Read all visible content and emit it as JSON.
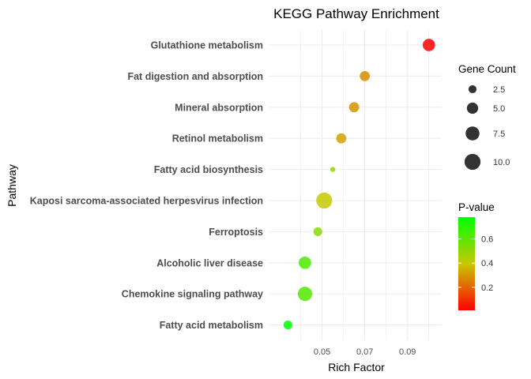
{
  "chart_data": {
    "type": "scatter",
    "title": "KEGG Pathway Enrichment",
    "xlabel": "Rich Factor",
    "ylabel": "Pathway",
    "xlim": [
      0.025,
      0.106
    ],
    "xticks": [
      {
        "value": 0.05,
        "label": "0.05"
      },
      {
        "value": 0.07,
        "label": "0.07"
      },
      {
        "value": 0.09,
        "label": "0.09"
      }
    ],
    "grid": true,
    "legend_position": "right",
    "categories": [
      "Glutathione metabolism",
      "Fat digestion and absorption",
      "Mineral absorption",
      "Retinol metabolism",
      "Fatty acid biosynthesis",
      "Kaposi sarcoma-associated herpesvirus infection",
      "Ferroptosis",
      "Alcoholic liver disease",
      "Chemokine signaling pathway",
      "Fatty acid metabolism"
    ],
    "points": [
      {
        "pathway": "Glutathione metabolism",
        "rich_factor": 0.1,
        "gene_count": 6,
        "p_value": 0.01
      },
      {
        "pathway": "Fat digestion and absorption",
        "rich_factor": 0.07,
        "gene_count": 4,
        "p_value": 0.28
      },
      {
        "pathway": "Mineral absorption",
        "rich_factor": 0.065,
        "gene_count": 4,
        "p_value": 0.29
      },
      {
        "pathway": "Retinol metabolism",
        "rich_factor": 0.059,
        "gene_count": 4,
        "p_value": 0.32
      },
      {
        "pathway": "Fatty acid biosynthesis",
        "rich_factor": 0.055,
        "gene_count": 1,
        "p_value": 0.5
      },
      {
        "pathway": "Kaposi sarcoma-associated herpesvirus infection",
        "rich_factor": 0.051,
        "gene_count": 10,
        "p_value": 0.4
      },
      {
        "pathway": "Ferroptosis",
        "rich_factor": 0.048,
        "gene_count": 3,
        "p_value": 0.52
      },
      {
        "pathway": "Alcoholic liver disease",
        "rich_factor": 0.042,
        "gene_count": 6,
        "p_value": 0.63
      },
      {
        "pathway": "Chemokine signaling pathway",
        "rich_factor": 0.042,
        "gene_count": 8,
        "p_value": 0.62
      },
      {
        "pathway": "Fatty acid metabolism",
        "rich_factor": 0.034,
        "gene_count": 3,
        "p_value": 0.78
      }
    ],
    "size_legend": {
      "title": "Gene Count",
      "breaks": [
        {
          "value": 2.5,
          "label": "2.5"
        },
        {
          "value": 5.0,
          "label": "5.0"
        },
        {
          "value": 7.5,
          "label": "7.5"
        },
        {
          "value": 10.0,
          "label": "10.0"
        }
      ],
      "color": "#333333"
    },
    "color_legend": {
      "title": "P-value",
      "range": [
        0.01,
        0.78
      ],
      "breaks": [
        {
          "value": 0.2,
          "label": "0.2"
        },
        {
          "value": 0.4,
          "label": "0.4"
        },
        {
          "value": 0.6,
          "label": "0.6"
        }
      ],
      "low_color": "#ff0000",
      "mid_color": "#c8c800",
      "high_color": "#00ff00"
    },
    "colors": {
      "panel_background": "#ffffff",
      "grid": "#ebebeb"
    }
  }
}
